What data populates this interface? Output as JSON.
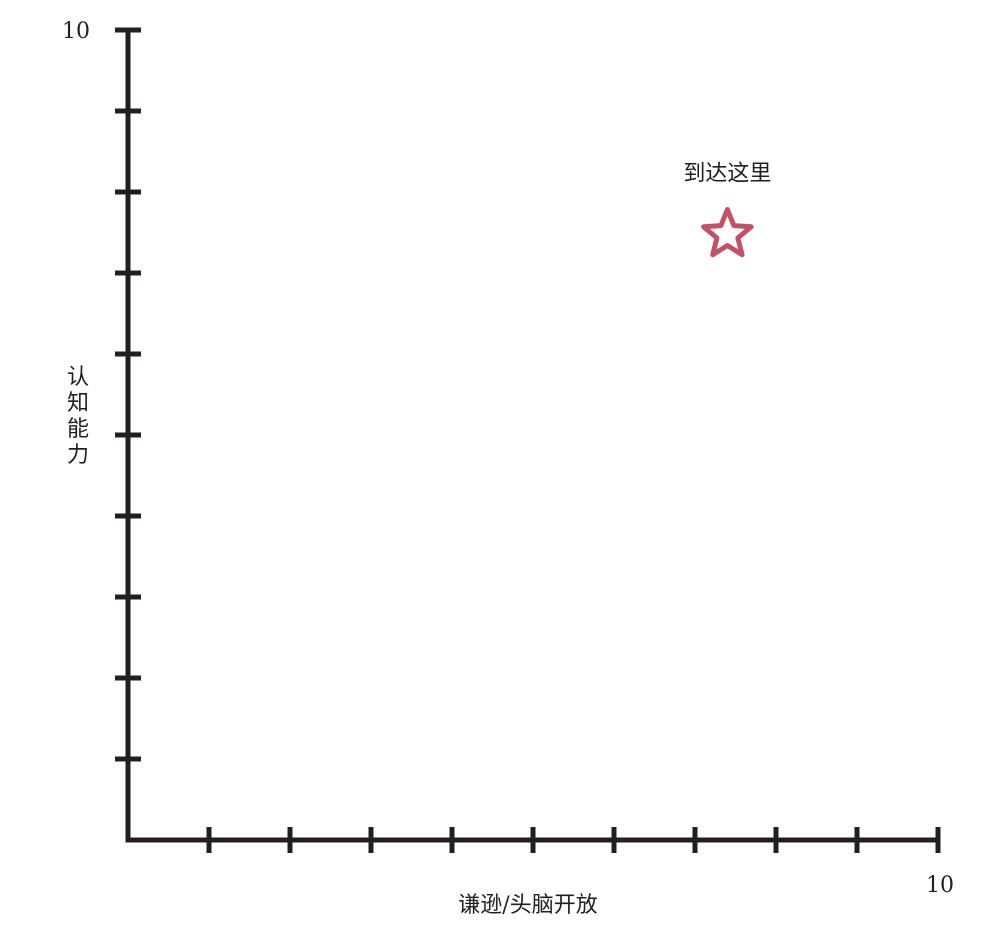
{
  "chart_data": {
    "type": "scatter",
    "title": "",
    "xlabel": "谦逊/头脑开放",
    "ylabel": "认知能力",
    "xlim": [
      0,
      10
    ],
    "ylim": [
      0,
      10
    ],
    "x_max_label": "10",
    "y_max_label": "10",
    "tick_count": 9,
    "grid": false,
    "points": [
      {
        "x": 7.4,
        "y": 7.5,
        "marker": "star",
        "label": "到达这里",
        "color": "#c05368"
      }
    ],
    "colors": {
      "axis": "#231f20",
      "marker": "#c05368"
    }
  }
}
